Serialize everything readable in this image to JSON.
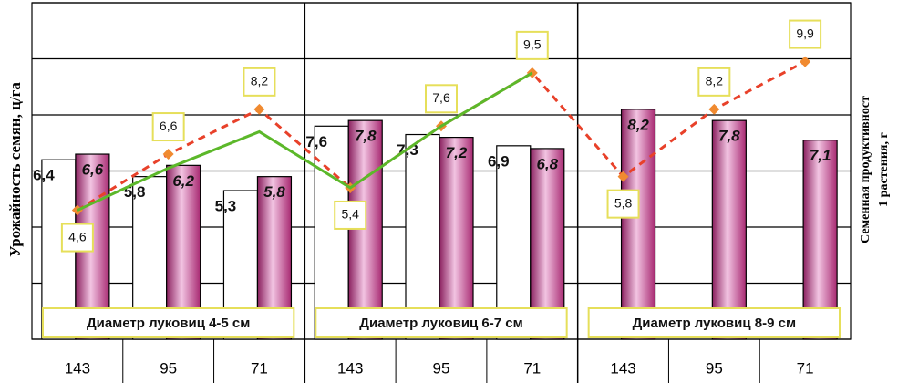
{
  "chart_data": {
    "type": "bar",
    "y_title": "Урожайность семян, ц/га",
    "y2_title": [
      "Семенная продуктивност",
      "1 растения, г"
    ],
    "categories": [
      "143",
      "95",
      "71",
      "143",
      "95",
      "71",
      "143",
      "95",
      "71"
    ],
    "groups": [
      "Диаметр луковиц 4-5 см",
      "Диаметр луковиц 6-7 см",
      "Диаметр луковиц 8-9 см"
    ],
    "ylim": [
      0,
      12
    ],
    "yticks": [
      0,
      2,
      4,
      6,
      8,
      10,
      12
    ],
    "y2lim": [
      0,
      12
    ],
    "grid": true,
    "series": [
      {
        "type": "bar",
        "color": "#ffffff",
        "values": [
          6.4,
          5.8,
          5.3,
          7.6,
          7.3,
          6.9,
          null,
          null,
          null
        ],
        "value_labels": [
          "6,4",
          "5,8",
          "5,3",
          "7,6",
          "7,3",
          "6,9",
          null,
          null,
          null
        ]
      },
      {
        "type": "bar",
        "color": "#b8327f",
        "values": [
          6.6,
          6.2,
          5.8,
          7.8,
          7.2,
          6.8,
          8.2,
          7.8,
          7.1
        ],
        "value_labels": [
          "6,6",
          "6,2",
          "5,8",
          "7,8",
          "7,2",
          "6,8",
          "8,2",
          "7,8",
          "7,1"
        ]
      },
      {
        "type": "line",
        "axis": "y2",
        "color": "#e8412a",
        "dashed": true,
        "marker": "diamond",
        "marker_color": "#f08a30",
        "values": [
          4.6,
          6.6,
          8.2,
          5.4,
          7.6,
          9.5,
          5.8,
          8.2,
          9.9
        ],
        "value_labels": [
          "4,6",
          "6,6",
          "8,2",
          "5,4",
          "7,6",
          "9,5",
          "5,8",
          "8,2",
          "9,9"
        ]
      },
      {
        "type": "line",
        "axis": "y2",
        "color": "#5cb82a",
        "dashed": false,
        "marker": "none",
        "values": [
          4.6,
          6.1,
          7.4,
          5.4,
          7.6,
          9.5,
          null,
          null,
          null
        ]
      }
    ]
  }
}
